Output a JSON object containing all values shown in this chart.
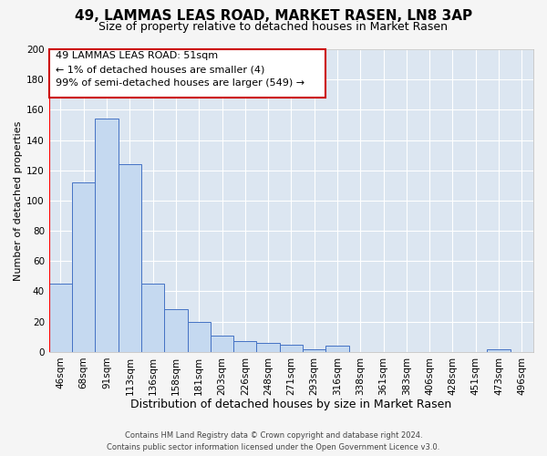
{
  "title": "49, LAMMAS LEAS ROAD, MARKET RASEN, LN8 3AP",
  "subtitle": "Size of property relative to detached houses in Market Rasen",
  "xlabel": "Distribution of detached houses by size in Market Rasen",
  "ylabel": "Number of detached properties",
  "bin_labels": [
    "46sqm",
    "68sqm",
    "91sqm",
    "113sqm",
    "136sqm",
    "158sqm",
    "181sqm",
    "203sqm",
    "226sqm",
    "248sqm",
    "271sqm",
    "293sqm",
    "316sqm",
    "338sqm",
    "361sqm",
    "383sqm",
    "406sqm",
    "428sqm",
    "451sqm",
    "473sqm",
    "496sqm"
  ],
  "bar_values": [
    45,
    112,
    154,
    124,
    45,
    28,
    20,
    11,
    7,
    6,
    5,
    2,
    4,
    0,
    0,
    0,
    0,
    0,
    0,
    2,
    0
  ],
  "bar_color": "#c5d9f0",
  "bar_edge_color": "#4472c4",
  "plot_bg_color": "#dce6f1",
  "fig_bg_color": "#f5f5f5",
  "ylim": [
    0,
    200
  ],
  "yticks": [
    0,
    20,
    40,
    60,
    80,
    100,
    120,
    140,
    160,
    180,
    200
  ],
  "annotation_line1": "49 LAMMAS LEAS ROAD: 51sqm",
  "annotation_line2": "← 1% of detached houses are smaller (4)",
  "annotation_line3": "99% of semi-detached houses are larger (549) →",
  "annotation_box_color": "#ffffff",
  "annotation_box_edge_color": "#cc0000",
  "footer_line1": "Contains HM Land Registry data © Crown copyright and database right 2024.",
  "footer_line2": "Contains public sector information licensed under the Open Government Licence v3.0.",
  "title_fontsize": 11,
  "subtitle_fontsize": 9,
  "xlabel_fontsize": 9,
  "ylabel_fontsize": 8,
  "tick_fontsize": 7.5,
  "annotation_fontsize": 8,
  "footer_fontsize": 6
}
